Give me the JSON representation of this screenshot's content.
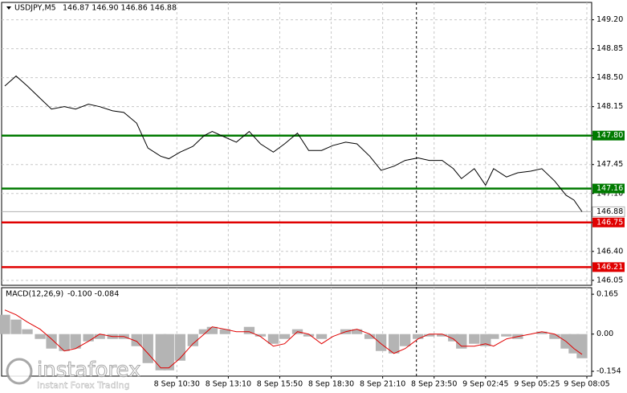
{
  "chart_data": [
    {
      "type": "line",
      "title": "USDJPY,M5",
      "ohlc": "146.87 146.90 146.86 146.88",
      "xlim": [
        0,
        367
      ],
      "ylim": [
        145.99,
        149.41
      ],
      "xticks": [
        {
          "value": 109,
          "label": "8 Sep 10:30"
        },
        {
          "value": 141,
          "label": "8 Sep 13:10"
        },
        {
          "value": 173,
          "label": "8 Sep 15:50"
        },
        {
          "value": 205,
          "label": "8 Sep 18:30"
        },
        {
          "value": 237,
          "label": "8 Sep 21:10"
        },
        {
          "value": 269,
          "label": "8 Sep 23:50"
        },
        {
          "value": 301,
          "label": "9 Sep 02:45"
        },
        {
          "value": 333,
          "label": "9 Sep 05:25"
        },
        {
          "value": 364,
          "label": "9 Sep 08:05"
        }
      ],
      "yticks": [
        {
          "value": 149.2,
          "label": "149.20"
        },
        {
          "value": 148.85,
          "label": "148.85"
        },
        {
          "value": 148.5,
          "label": "148.50"
        },
        {
          "value": 148.15,
          "label": "148.15"
        },
        {
          "value": 147.8,
          "label": "147.80"
        },
        {
          "value": 147.45,
          "label": "147.45"
        },
        {
          "value": 147.1,
          "label": "147.10"
        },
        {
          "value": 146.75,
          "label": "146.75"
        },
        {
          "value": 146.4,
          "label": "146.40"
        },
        {
          "value": 146.05,
          "label": "146.05"
        }
      ],
      "grid": true,
      "separator_x": 258,
      "levels": [
        {
          "value": 147.8,
          "label": "147.80",
          "color": "#007a00"
        },
        {
          "value": 147.16,
          "label": "147.16",
          "color": "#007a00"
        },
        {
          "value": 146.75,
          "label": "146.75",
          "color": "#e00000"
        },
        {
          "value": 146.21,
          "label": "146.21",
          "color": "#e00000"
        }
      ],
      "current": {
        "value": 146.88,
        "label": "146.88",
        "color": "#b0b0b0"
      },
      "series": [
        {
          "color": "#000000",
          "x": [
            2,
            9,
            16,
            24,
            31,
            39,
            46,
            54,
            61,
            69,
            76,
            84,
            91,
            99,
            104,
            111,
            119,
            126,
            131,
            139,
            146,
            154,
            161,
            169,
            176,
            184,
            191,
            199,
            206,
            214,
            221,
            229,
            236,
            244,
            251,
            259,
            266,
            274,
            281,
            286,
            294,
            301,
            306,
            314,
            321,
            329,
            336,
            344,
            351,
            356,
            361
          ],
          "values": [
            148.4,
            148.52,
            148.4,
            148.25,
            148.12,
            148.15,
            148.12,
            148.18,
            148.15,
            148.1,
            148.08,
            147.95,
            147.65,
            147.55,
            147.52,
            147.6,
            147.67,
            147.8,
            147.85,
            147.78,
            147.72,
            147.85,
            147.7,
            147.6,
            147.7,
            147.83,
            147.62,
            147.62,
            147.68,
            147.72,
            147.7,
            147.55,
            147.38,
            147.43,
            147.5,
            147.53,
            147.5,
            147.5,
            147.4,
            147.28,
            147.4,
            147.2,
            147.4,
            147.3,
            147.35,
            147.37,
            147.4,
            147.25,
            147.08,
            147.02,
            146.88
          ]
        }
      ]
    },
    {
      "type": "macd",
      "title": "MACD(12,26,9)",
      "header_values": "-0.100 -0.084",
      "xlim": [
        0,
        367
      ],
      "ylim": [
        -0.174,
        0.192
      ],
      "yticks": [
        {
          "value": 0.165,
          "label": "0.165"
        },
        {
          "value": 0,
          "label": "0.00"
        },
        {
          "value": -0.154,
          "label": "-0.154"
        }
      ],
      "x": [
        2,
        9,
        16,
        24,
        31,
        39,
        46,
        54,
        61,
        69,
        76,
        84,
        91,
        99,
        104,
        111,
        119,
        126,
        131,
        139,
        146,
        154,
        161,
        169,
        176,
        184,
        191,
        199,
        206,
        214,
        221,
        229,
        236,
        244,
        251,
        259,
        266,
        274,
        281,
        286,
        294,
        301,
        306,
        314,
        321,
        329,
        336,
        344,
        351,
        356,
        361
      ],
      "series": [
        {
          "name": "histogram",
          "color": "#b4b4b4",
          "values": [
            0.08,
            0.06,
            0.02,
            -0.02,
            -0.06,
            -0.07,
            -0.06,
            -0.03,
            -0.02,
            -0.02,
            -0.02,
            -0.05,
            -0.12,
            -0.15,
            -0.15,
            -0.11,
            -0.05,
            0.02,
            0.03,
            0.02,
            0,
            0.03,
            -0.01,
            -0.04,
            -0.02,
            0.02,
            -0.01,
            -0.02,
            0,
            0.02,
            0.02,
            -0.02,
            -0.07,
            -0.08,
            -0.05,
            -0.02,
            -0.01,
            -0.01,
            -0.03,
            -0.06,
            -0.04,
            -0.05,
            -0.02,
            -0.01,
            -0.02,
            0,
            0.01,
            -0.02,
            -0.06,
            -0.08,
            -0.1
          ]
        },
        {
          "name": "signal",
          "color": "#e00000",
          "values": [
            0.1,
            0.08,
            0.05,
            0.02,
            -0.02,
            -0.07,
            -0.06,
            -0.03,
            0,
            -0.01,
            -0.01,
            -0.03,
            -0.08,
            -0.14,
            -0.14,
            -0.1,
            -0.04,
            0,
            0.03,
            0.02,
            0.01,
            0.01,
            -0.01,
            -0.05,
            -0.04,
            0.01,
            0,
            -0.04,
            -0.01,
            0.01,
            0.02,
            0,
            -0.04,
            -0.08,
            -0.06,
            -0.02,
            0,
            0,
            -0.02,
            -0.05,
            -0.05,
            -0.04,
            -0.05,
            -0.02,
            -0.01,
            0,
            0.01,
            0,
            -0.03,
            -0.06,
            -0.084
          ]
        }
      ]
    }
  ],
  "watermark": {
    "brand": "instaforex",
    "tagline": "Instant Forex Trading"
  }
}
